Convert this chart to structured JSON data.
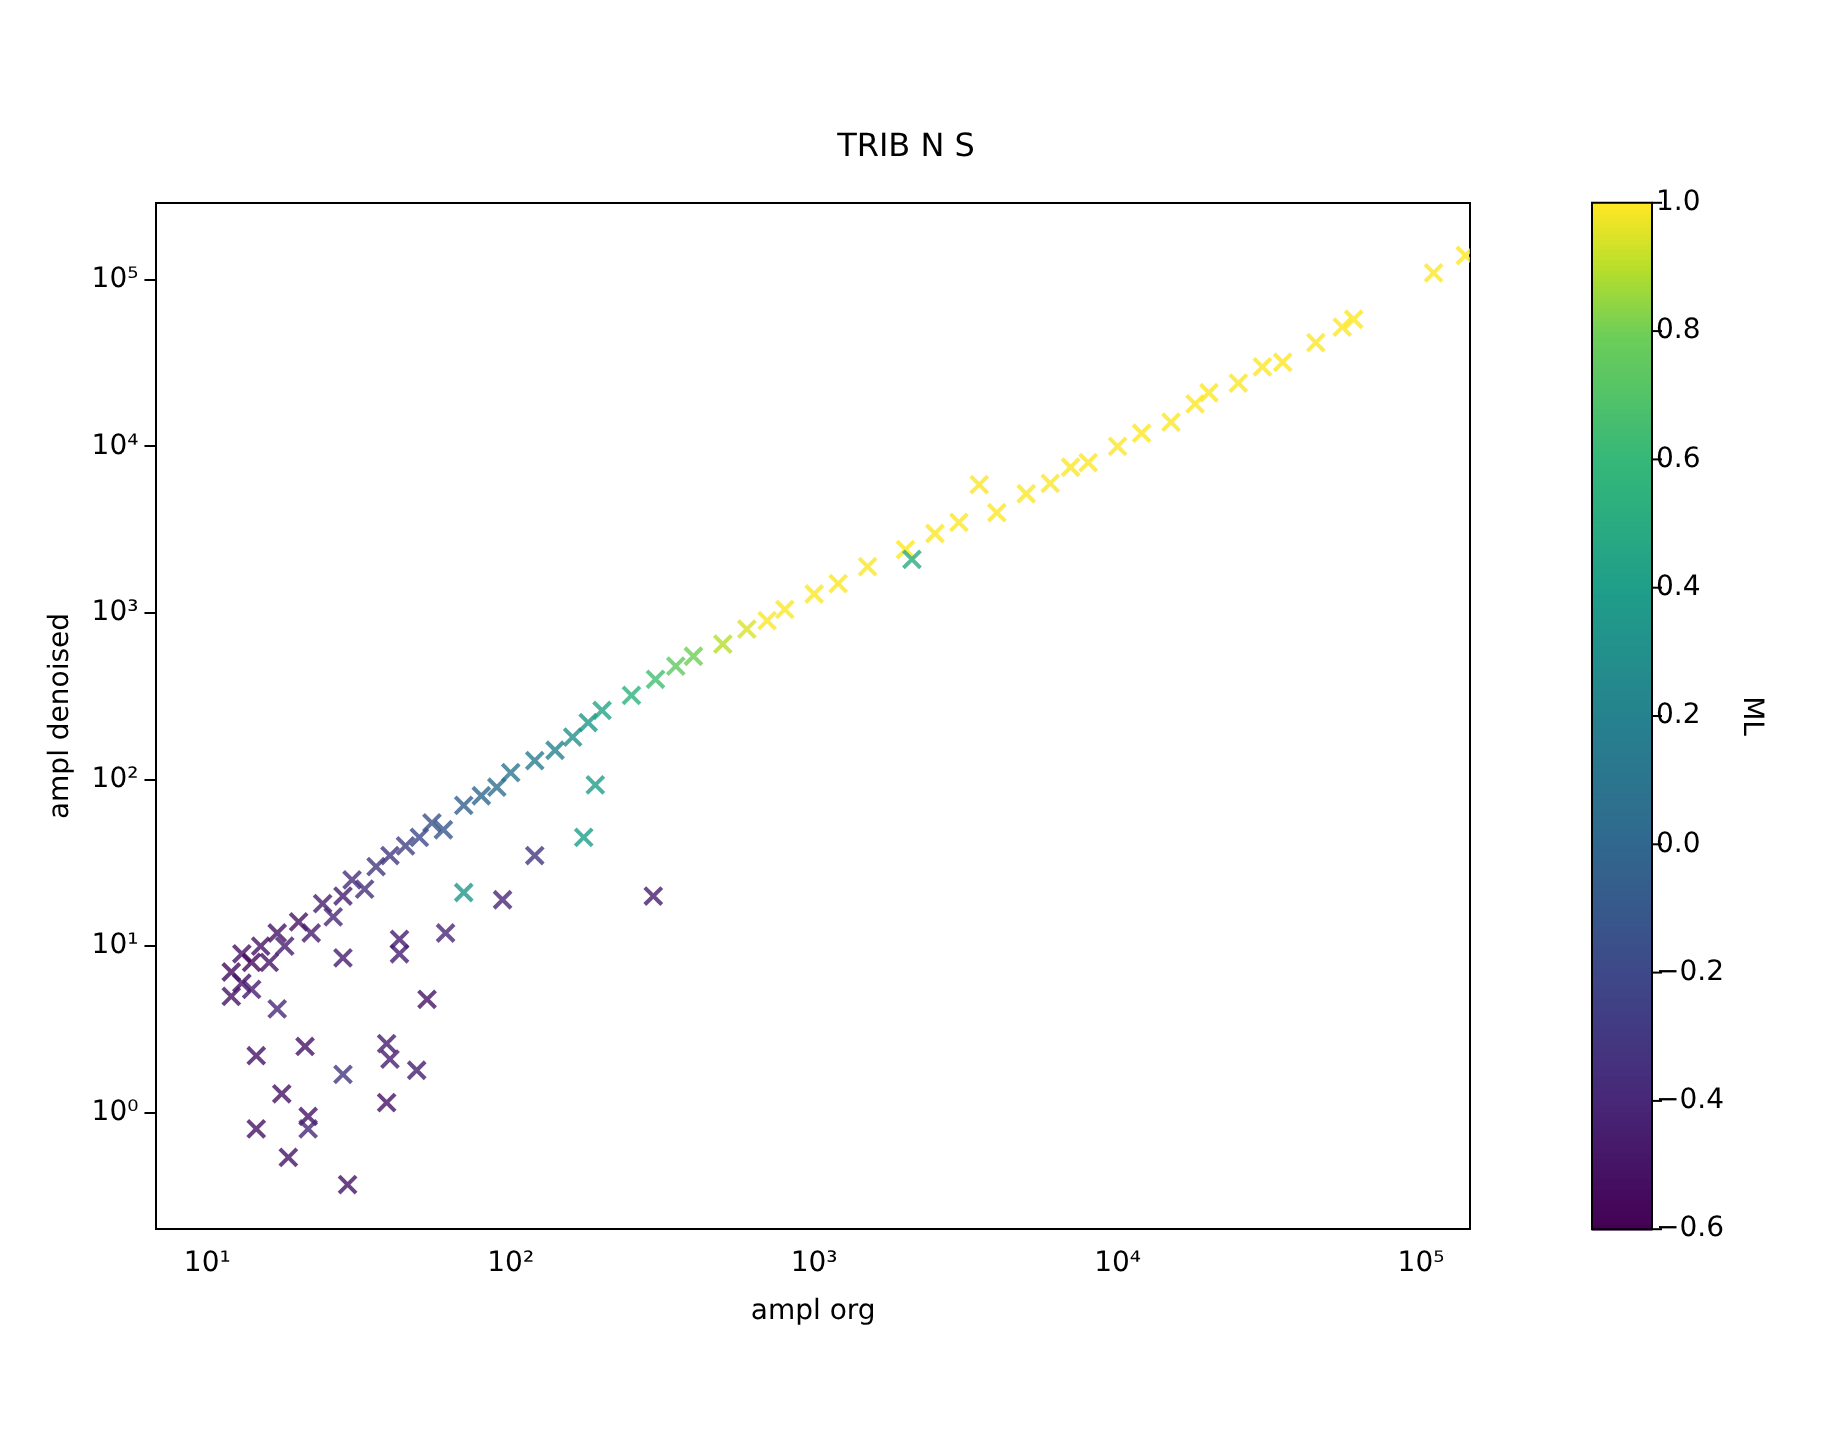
{
  "chart_data": {
    "type": "scatter",
    "title": "TRIB N S",
    "xlabel": "ampl org",
    "ylabel": "ampl denoised",
    "clabel": "ML",
    "log": "xy",
    "grid": false,
    "legend": false,
    "marker": "cross",
    "xlim": [
      6.8,
      145000
    ],
    "ylim": [
      0.2,
      290000
    ],
    "xticks": [
      {
        "value": 10,
        "label": "10¹"
      },
      {
        "value": 100,
        "label": "10²"
      },
      {
        "value": 1000,
        "label": "10³"
      },
      {
        "value": 10000,
        "label": "10⁴"
      },
      {
        "value": 100000,
        "label": "10⁵"
      }
    ],
    "yticks": [
      {
        "value": 1,
        "label": "10⁰"
      },
      {
        "value": 10,
        "label": "10¹"
      },
      {
        "value": 100,
        "label": "10²"
      },
      {
        "value": 1000,
        "label": "10³"
      },
      {
        "value": 10000,
        "label": "10⁴"
      },
      {
        "value": 100000,
        "label": "10⁵"
      }
    ],
    "clim": [
      -0.6,
      1.0
    ],
    "cticks": [
      {
        "value": -0.6,
        "label": "−0.6"
      },
      {
        "value": -0.4,
        "label": "−0.4"
      },
      {
        "value": -0.2,
        "label": "−0.2"
      },
      {
        "value": 0,
        "label": "0.0"
      },
      {
        "value": 0.2,
        "label": "0.2"
      },
      {
        "value": 0.4,
        "label": "0.4"
      },
      {
        "value": 0.6,
        "label": "0.6"
      },
      {
        "value": 0.8,
        "label": "0.8"
      },
      {
        "value": 1,
        "label": "1.0"
      }
    ],
    "series": [
      {
        "x": [
          12,
          12,
          13,
          13,
          14,
          14,
          15,
          16,
          17,
          18,
          20,
          22,
          24,
          26,
          28,
          30,
          33,
          36,
          40,
          45,
          50,
          55,
          60,
          70,
          80,
          90,
          100,
          120,
          140,
          160,
          180,
          200,
          250,
          300,
          350,
          400,
          500,
          600,
          700,
          800,
          1000,
          1200,
          1500,
          2000,
          2100,
          2500,
          3000,
          3500,
          4000,
          5000,
          6000,
          7000,
          8000,
          10000,
          12000,
          15000,
          18000,
          20000,
          25000,
          30000,
          35000,
          45000,
          55000,
          60000,
          110000,
          140000,
          295,
          174,
          190,
          120,
          94,
          70,
          61,
          43,
          43,
          28,
          53,
          17,
          14.5,
          21,
          28,
          39,
          40,
          49,
          17.6,
          21.5,
          39,
          14.5,
          21.5,
          18.5,
          29
        ],
        "values": [
          5,
          7,
          6,
          9,
          5.5,
          8,
          10,
          8,
          12,
          10,
          14,
          12,
          18,
          15,
          20,
          25,
          22,
          30,
          35,
          40,
          45,
          55,
          50,
          70,
          80,
          90,
          110,
          130,
          150,
          180,
          220,
          260,
          320,
          400,
          480,
          550,
          650,
          800,
          900,
          1050,
          1300,
          1500,
          1900,
          2400,
          2100,
          3000,
          3500,
          5900,
          4000,
          5200,
          6000,
          7500,
          8000,
          10000,
          12000,
          14000,
          18000,
          21000,
          24000,
          30000,
          32000,
          42000,
          52000,
          58000,
          110000,
          140000,
          20,
          45,
          93,
          35,
          19,
          21,
          12,
          11,
          9,
          8.5,
          4.8,
          4.2,
          2.2,
          2.5,
          1.7,
          2.6,
          2.1,
          1.8,
          1.3,
          0.95,
          1.15,
          0.8,
          0.8,
          0.54,
          0.37
        ],
        "cvalues": [
          -0.5,
          -0.55,
          -0.5,
          -0.5,
          -0.45,
          -0.55,
          -0.5,
          -0.5,
          -0.5,
          -0.45,
          -0.5,
          -0.45,
          -0.45,
          -0.4,
          -0.45,
          -0.35,
          -0.35,
          -0.3,
          -0.3,
          -0.25,
          -0.2,
          -0.15,
          -0.1,
          -0.05,
          0.0,
          0.05,
          0.1,
          0.15,
          0.2,
          0.3,
          0.35,
          0.45,
          0.55,
          0.65,
          0.75,
          0.8,
          0.9,
          0.95,
          1,
          1,
          1,
          1,
          1,
          1,
          0.5,
          1,
          1,
          1,
          1,
          1,
          1,
          1,
          1,
          1,
          1,
          1,
          1,
          1,
          1,
          1,
          1,
          1,
          1,
          1,
          1,
          1,
          -0.45,
          0.4,
          0.4,
          -0.3,
          -0.4,
          0.35,
          -0.4,
          -0.45,
          -0.45,
          -0.45,
          -0.5,
          -0.4,
          -0.5,
          -0.5,
          -0.3,
          -0.45,
          -0.45,
          -0.45,
          -0.5,
          -0.5,
          -0.5,
          -0.5,
          -0.4,
          -0.5,
          -0.5
        ]
      }
    ]
  }
}
